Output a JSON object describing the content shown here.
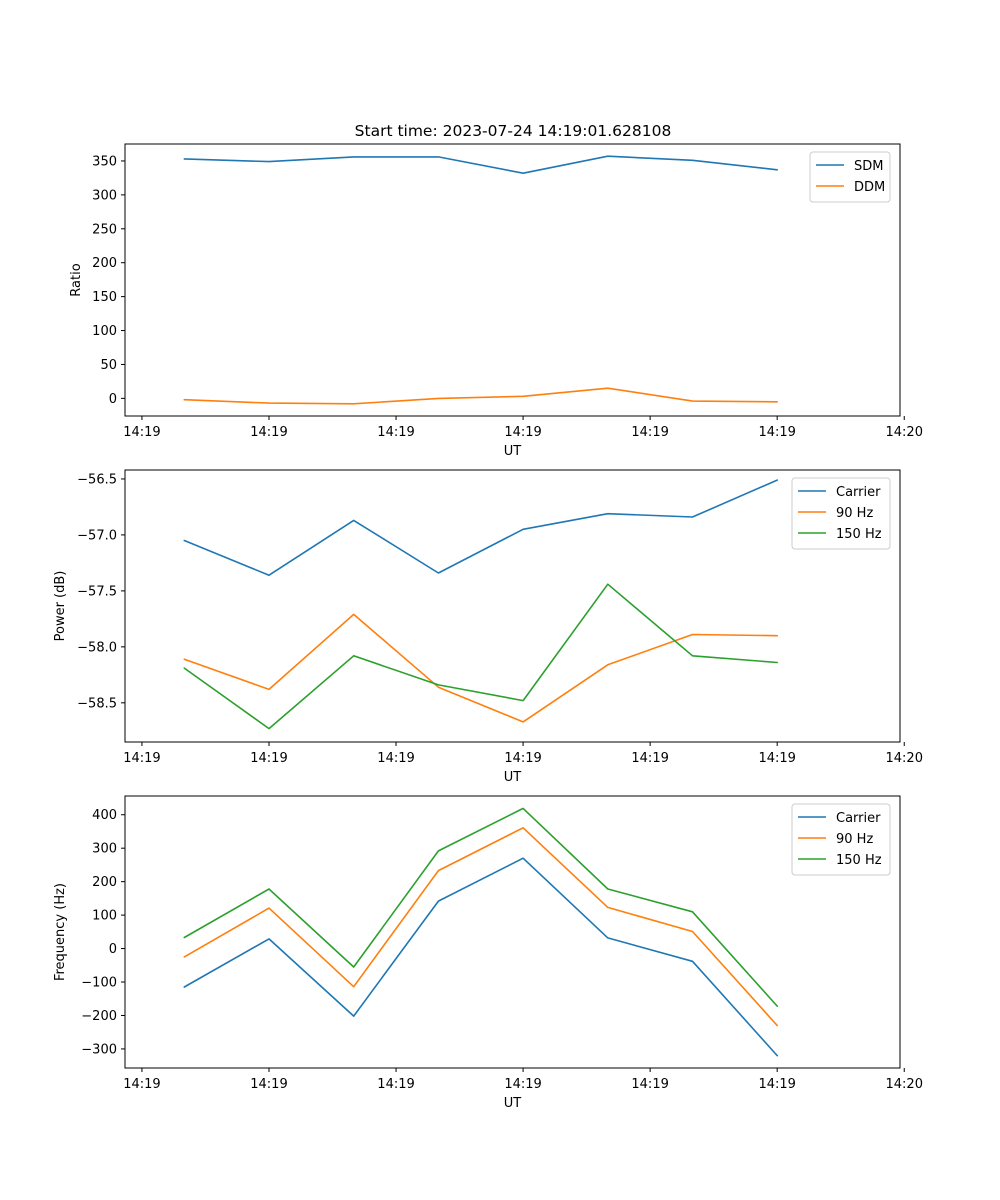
{
  "title": "Start time: 2023-07-24 14:19:01.628108",
  "colors": {
    "blue": "#1f77b4",
    "orange": "#ff7f0e",
    "green": "#2ca02c"
  },
  "chart_data": [
    {
      "type": "line",
      "title": "Start time: 2023-07-24 14:19:01.628108",
      "xlabel": "UT",
      "ylabel": "Ratio",
      "x": [
        1,
        2,
        3,
        4,
        5,
        6,
        7,
        8
      ],
      "xlim": [
        0.3,
        9.45
      ],
      "xticks": [
        0.5,
        2.0,
        3.5,
        5.0,
        6.5,
        8.0,
        9.5
      ],
      "xtick_labels": [
        "14:19",
        "14:19",
        "14:19",
        "14:19",
        "14:19",
        "14:19",
        "14:20"
      ],
      "ylim": [
        -26,
        375
      ],
      "yticks": [
        0,
        50,
        100,
        150,
        200,
        250,
        300,
        350
      ],
      "ytick_labels": [
        "0",
        "50",
        "100",
        "150",
        "200",
        "250",
        "300",
        "350"
      ],
      "legend_position": "upper-right",
      "series": [
        {
          "name": "SDM",
          "color": "#1f77b4",
          "values": [
            353,
            349,
            356,
            356,
            332,
            357,
            351,
            337
          ]
        },
        {
          "name": "DDM",
          "color": "#ff7f0e",
          "values": [
            -2,
            -7,
            -8,
            0,
            3,
            15,
            -4,
            -5
          ]
        }
      ]
    },
    {
      "type": "line",
      "title": "",
      "xlabel": "UT",
      "ylabel": "Power (dB)",
      "x": [
        1,
        2,
        3,
        4,
        5,
        6,
        7,
        8
      ],
      "xlim": [
        0.3,
        9.45
      ],
      "xticks": [
        0.5,
        2.0,
        3.5,
        5.0,
        6.5,
        8.0,
        9.5
      ],
      "xtick_labels": [
        "14:19",
        "14:19",
        "14:19",
        "14:19",
        "14:19",
        "14:19",
        "14:20"
      ],
      "ylim": [
        -58.85,
        -56.42
      ],
      "yticks": [
        -58.5,
        -58.0,
        -57.5,
        -57.0,
        -56.5
      ],
      "ytick_labels": [
        "−58.5",
        "−58.0",
        "−57.5",
        "−57.0",
        "−56.5"
      ],
      "legend_position": "upper-right",
      "series": [
        {
          "name": "Carrier",
          "color": "#1f77b4",
          "values": [
            -57.05,
            -57.36,
            -56.87,
            -57.34,
            -56.95,
            -56.81,
            -56.84,
            -56.51
          ]
        },
        {
          "name": "90 Hz",
          "color": "#ff7f0e",
          "values": [
            -58.11,
            -58.38,
            -57.71,
            -58.36,
            -58.67,
            -58.16,
            -57.89,
            -57.9
          ]
        },
        {
          "name": "150 Hz",
          "color": "#2ca02c",
          "values": [
            -58.19,
            -58.73,
            -58.08,
            -58.34,
            -58.48,
            -57.44,
            -58.08,
            -58.14
          ]
        }
      ]
    },
    {
      "type": "line",
      "title": "",
      "xlabel": "UT",
      "ylabel": "Frequency (Hz)",
      "x": [
        1,
        2,
        3,
        4,
        5,
        6,
        7,
        8
      ],
      "xlim": [
        0.3,
        9.45
      ],
      "xticks": [
        0.5,
        2.0,
        3.5,
        5.0,
        6.5,
        8.0,
        9.5
      ],
      "xtick_labels": [
        "14:19",
        "14:19",
        "14:19",
        "14:19",
        "14:19",
        "14:19",
        "14:20"
      ],
      "ylim": [
        -357,
        456
      ],
      "yticks": [
        -300,
        -200,
        -100,
        0,
        100,
        200,
        300,
        400
      ],
      "ytick_labels": [
        "−300",
        "−200",
        "−100",
        "0",
        "100",
        "200",
        "300",
        "400"
      ],
      "legend_position": "upper-right",
      "series": [
        {
          "name": "Carrier",
          "color": "#1f77b4",
          "values": [
            -115,
            29,
            -202,
            142,
            270,
            32,
            -38,
            -320
          ]
        },
        {
          "name": "90 Hz",
          "color": "#ff7f0e",
          "values": [
            -25,
            121,
            -114,
            233,
            361,
            123,
            51,
            -230
          ]
        },
        {
          "name": "150 Hz",
          "color": "#2ca02c",
          "values": [
            33,
            178,
            -55,
            292,
            419,
            178,
            110,
            -172
          ]
        }
      ]
    }
  ]
}
